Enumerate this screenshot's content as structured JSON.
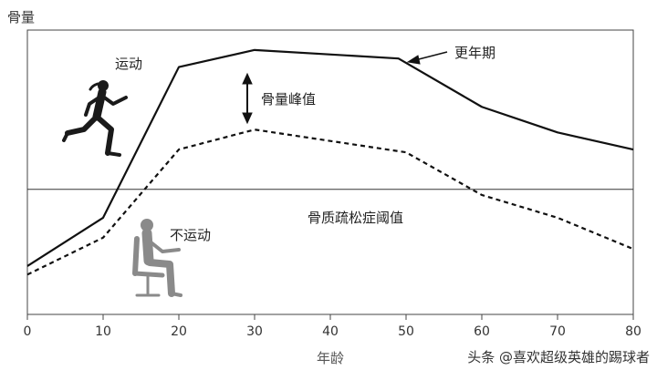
{
  "chart_data": {
    "type": "line",
    "ylabel": "骨量",
    "xlabel": "年龄",
    "xlim": [
      0,
      80
    ],
    "xticks": [
      0,
      10,
      20,
      30,
      40,
      50,
      60,
      70,
      80
    ],
    "series": [
      {
        "name": "运动",
        "style": "solid",
        "x": [
          0,
          10,
          20,
          30,
          49,
          60,
          70,
          80
        ],
        "y": [
          0.17,
          0.34,
          0.87,
          0.93,
          0.9,
          0.73,
          0.64,
          0.58
        ]
      },
      {
        "name": "不运动",
        "style": "dashed",
        "x": [
          0,
          10,
          20,
          30,
          50,
          60,
          70,
          80
        ],
        "y": [
          0.14,
          0.27,
          0.58,
          0.65,
          0.57,
          0.42,
          0.34,
          0.23
        ]
      }
    ],
    "threshold": {
      "label": "骨质疏松症阈值",
      "y": 0.44
    },
    "annotations": {
      "peak": "骨量峰值",
      "menopause": "更年期"
    }
  },
  "watermark": "头条 @喜欢超级英雄的踢球者",
  "colors": {
    "line": "#111111",
    "threshold": "#333333",
    "figure": "#1a1a1a",
    "figure_gray": "#8a8a8a"
  }
}
